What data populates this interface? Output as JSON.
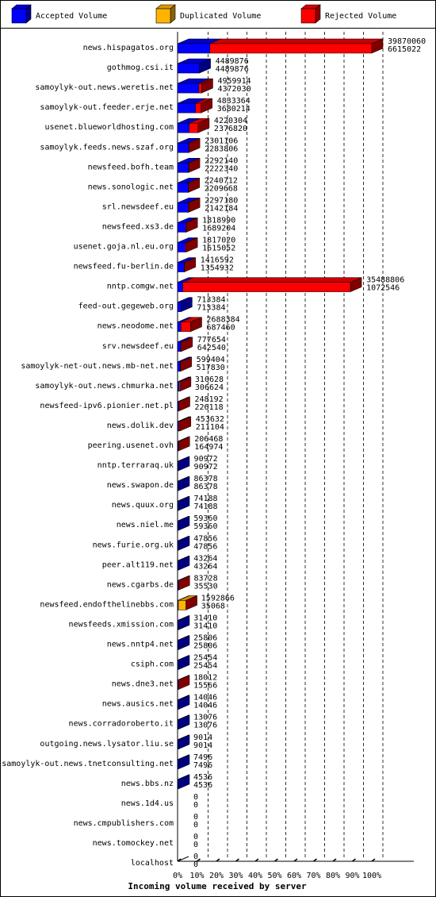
{
  "chart_data": {
    "type": "bar",
    "title": "",
    "xlabel": "Incoming volume received by server",
    "ylabel": "",
    "xlim": [
      0,
      100
    ],
    "x_ticks": [
      "0%",
      "10%",
      "20%",
      "30%",
      "40%",
      "50%",
      "60%",
      "70%",
      "80%",
      "90%",
      "100%"
    ],
    "max_volume": 39870060,
    "legend": [
      {
        "name": "Accepted Volume",
        "color": "#0000ff"
      },
      {
        "name": "Duplicated Volume",
        "color": "#ffb400"
      },
      {
        "name": "Rejected Volume",
        "color": "#ff0000"
      }
    ],
    "legend_position": "top",
    "colors": {
      "accepted": "#0000ff",
      "duplicated": "#ffb400",
      "rejected": "#ff0000"
    },
    "categories": [
      {
        "server": "news.hispagatos.org",
        "total": 39870060,
        "accepted": 6615022,
        "duplicated": 0
      },
      {
        "server": "gothmog.csi.it",
        "total": 4489876,
        "accepted": 4489876,
        "duplicated": 0
      },
      {
        "server": "samoylyk-out.news.weretis.net",
        "total": 4959914,
        "accepted": 4372030,
        "duplicated": 0
      },
      {
        "server": "samoylyk-out.feeder.erje.net",
        "total": 4833364,
        "accepted": 3680214,
        "duplicated": 0
      },
      {
        "server": "usenet.blueworldhosting.com",
        "total": 4220304,
        "accepted": 2376820,
        "duplicated": 0
      },
      {
        "server": "samoylyk.feeds.news.szaf.org",
        "total": 2301106,
        "accepted": 2283806,
        "duplicated": 0
      },
      {
        "server": "newsfeed.bofh.team",
        "total": 2292140,
        "accepted": 2222340,
        "duplicated": 0
      },
      {
        "server": "news.sonologic.net",
        "total": 2240712,
        "accepted": 2209668,
        "duplicated": 0
      },
      {
        "server": "srl.newsdeef.eu",
        "total": 2297180,
        "accepted": 2142184,
        "duplicated": 0
      },
      {
        "server": "newsfeed.xs3.de",
        "total": 1818990,
        "accepted": 1689204,
        "duplicated": 0
      },
      {
        "server": "usenet.goja.nl.eu.org",
        "total": 1817020,
        "accepted": 1615052,
        "duplicated": 0
      },
      {
        "server": "newsfeed.fu-berlin.de",
        "total": 1416592,
        "accepted": 1354932,
        "duplicated": 0
      },
      {
        "server": "nntp.comgw.net",
        "total": 35488806,
        "accepted": 1072546,
        "duplicated": 0
      },
      {
        "server": "feed-out.gegeweb.org",
        "total": 713384,
        "accepted": 713384,
        "duplicated": 0
      },
      {
        "server": "news.neodome.net",
        "total": 2688384,
        "accepted": 687460,
        "duplicated": 0
      },
      {
        "server": "srv.newsdeef.eu",
        "total": 777654,
        "accepted": 642540,
        "duplicated": 0
      },
      {
        "server": "samoylyk-net-out.news.mb-net.net",
        "total": 599404,
        "accepted": 517830,
        "duplicated": 0
      },
      {
        "server": "samoylyk-out.news.chmurka.net",
        "total": 310628,
        "accepted": 306624,
        "duplicated": 4004
      },
      {
        "server": "newsfeed-ipv6.pionier.net.pl",
        "total": 248192,
        "accepted": 226118,
        "duplicated": 0
      },
      {
        "server": "news.dolik.dev",
        "total": 453632,
        "accepted": 211104,
        "duplicated": 0
      },
      {
        "server": "peering.usenet.ovh",
        "total": 206468,
        "accepted": 164974,
        "duplicated": 0
      },
      {
        "server": "nntp.terraraq.uk",
        "total": 90972,
        "accepted": 90972,
        "duplicated": 0
      },
      {
        "server": "news.swapon.de",
        "total": 86378,
        "accepted": 86378,
        "duplicated": 0
      },
      {
        "server": "news.quux.org",
        "total": 74188,
        "accepted": 74188,
        "duplicated": 0
      },
      {
        "server": "news.niel.me",
        "total": 59360,
        "accepted": 59360,
        "duplicated": 0
      },
      {
        "server": "news.furie.org.uk",
        "total": 47856,
        "accepted": 47856,
        "duplicated": 0
      },
      {
        "server": "peer.alt119.net",
        "total": 43264,
        "accepted": 43264,
        "duplicated": 0
      },
      {
        "server": "news.cgarbs.de",
        "total": 83728,
        "accepted": 35530,
        "duplicated": 0
      },
      {
        "server": "newsfeed.endofthelinebbs.com",
        "total": 1592866,
        "accepted": 35068,
        "duplicated": 1557798
      },
      {
        "server": "newsfeeds.xmission.com",
        "total": 31410,
        "accepted": 31410,
        "duplicated": 0
      },
      {
        "server": "news.nntp4.net",
        "total": 25806,
        "accepted": 25806,
        "duplicated": 0
      },
      {
        "server": "csiph.com",
        "total": 25454,
        "accepted": 25454,
        "duplicated": 0
      },
      {
        "server": "news.dne3.net",
        "total": 18012,
        "accepted": 15566,
        "duplicated": 0
      },
      {
        "server": "news.ausics.net",
        "total": 14046,
        "accepted": 14046,
        "duplicated": 0
      },
      {
        "server": "news.corradoroberto.it",
        "total": 13076,
        "accepted": 13076,
        "duplicated": 0
      },
      {
        "server": "outgoing.news.lysator.liu.se",
        "total": 9014,
        "accepted": 9014,
        "duplicated": 0
      },
      {
        "server": "samoylyk-out.news.tnetconsulting.net",
        "total": 7496,
        "accepted": 7496,
        "duplicated": 0
      },
      {
        "server": "news.bbs.nz",
        "total": 4536,
        "accepted": 4536,
        "duplicated": 0
      },
      {
        "server": "news.1d4.us",
        "total": 0,
        "accepted": 0,
        "duplicated": 0
      },
      {
        "server": "news.cmpublishers.com",
        "total": 0,
        "accepted": 0,
        "duplicated": 0
      },
      {
        "server": "news.tomockey.net",
        "total": 0,
        "accepted": 0,
        "duplicated": 0
      },
      {
        "server": "localhost",
        "total": 0,
        "accepted": 0,
        "duplicated": 0
      }
    ]
  }
}
